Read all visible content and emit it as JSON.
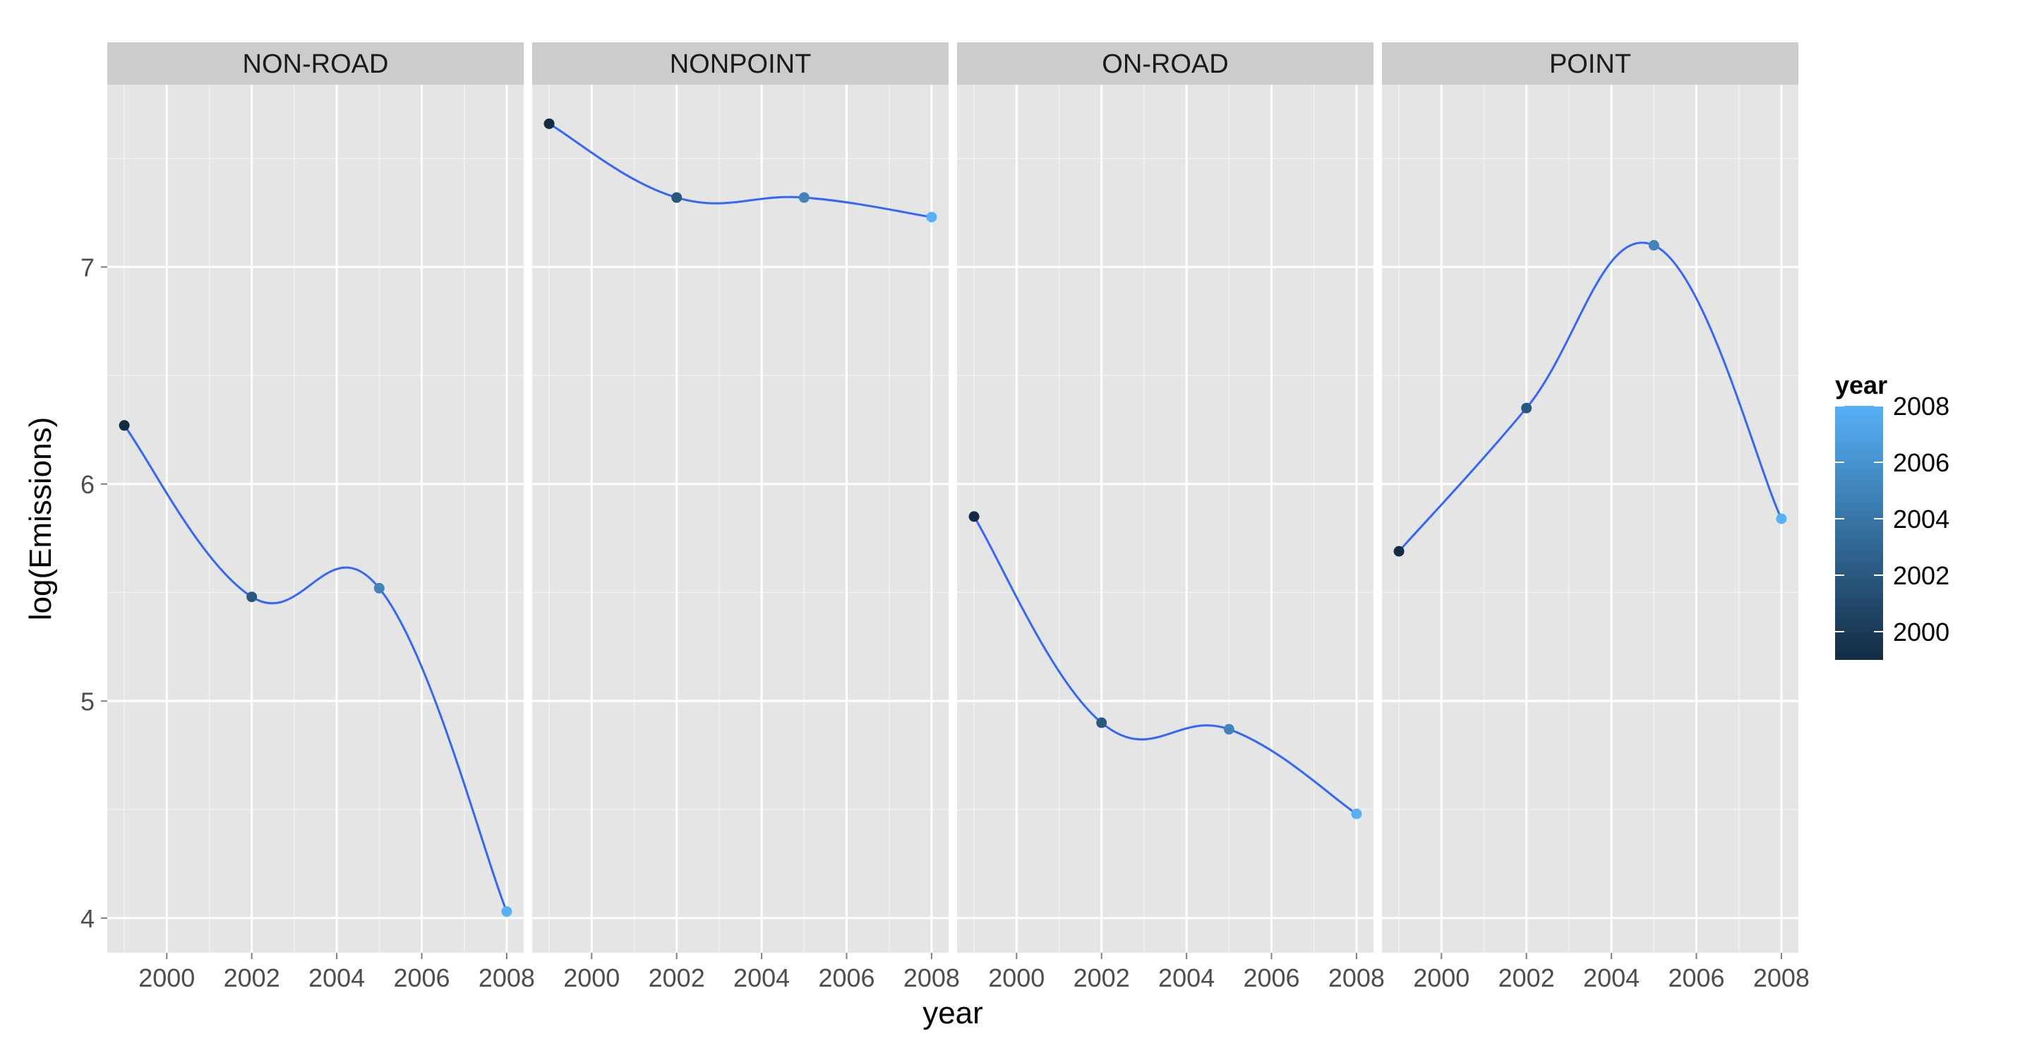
{
  "chart_data": {
    "type": "line",
    "facet_by": "type",
    "facets": [
      {
        "label": "NON-ROAD",
        "x": [
          1999,
          2002,
          2005,
          2008
        ],
        "y": [
          6.27,
          5.48,
          5.52,
          4.03
        ]
      },
      {
        "label": "NONPOINT",
        "x": [
          1999,
          2002,
          2005,
          2008
        ],
        "y": [
          7.66,
          7.32,
          7.32,
          7.23
        ]
      },
      {
        "label": "ON-ROAD",
        "x": [
          1999,
          2002,
          2005,
          2008
        ],
        "y": [
          5.85,
          4.9,
          4.87,
          4.48
        ]
      },
      {
        "label": "POINT",
        "x": [
          1999,
          2002,
          2005,
          2008
        ],
        "y": [
          5.69,
          6.35,
          7.1,
          5.84
        ]
      }
    ],
    "xlabel": "year",
    "ylabel": "log(Emissions)",
    "xlim": [
      1998.6,
      2008.4
    ],
    "ylim": [
      3.84,
      7.84
    ],
    "xticks": [
      2000,
      2002,
      2004,
      2006,
      2008
    ],
    "yticks": [
      4,
      5,
      6,
      7
    ],
    "xtick_labels": [
      "2000",
      "2002",
      "2004",
      "2006",
      "2008"
    ],
    "ytick_labels": [
      "4",
      "5",
      "6",
      "7"
    ],
    "grid": true,
    "panel_background": "#e5e5e5",
    "strip_background": "#cccccc",
    "line_color": "#3366ff",
    "legend": {
      "title": "year",
      "position": "right",
      "type": "colorbar",
      "min": 1999,
      "max": 2008,
      "low_color": "#132b43",
      "high_color": "#56b1f7",
      "ticks": [
        2000,
        2002,
        2004,
        2006,
        2008
      ],
      "tick_labels": [
        "2000",
        "2002",
        "2004",
        "2006",
        "2008"
      ]
    }
  }
}
